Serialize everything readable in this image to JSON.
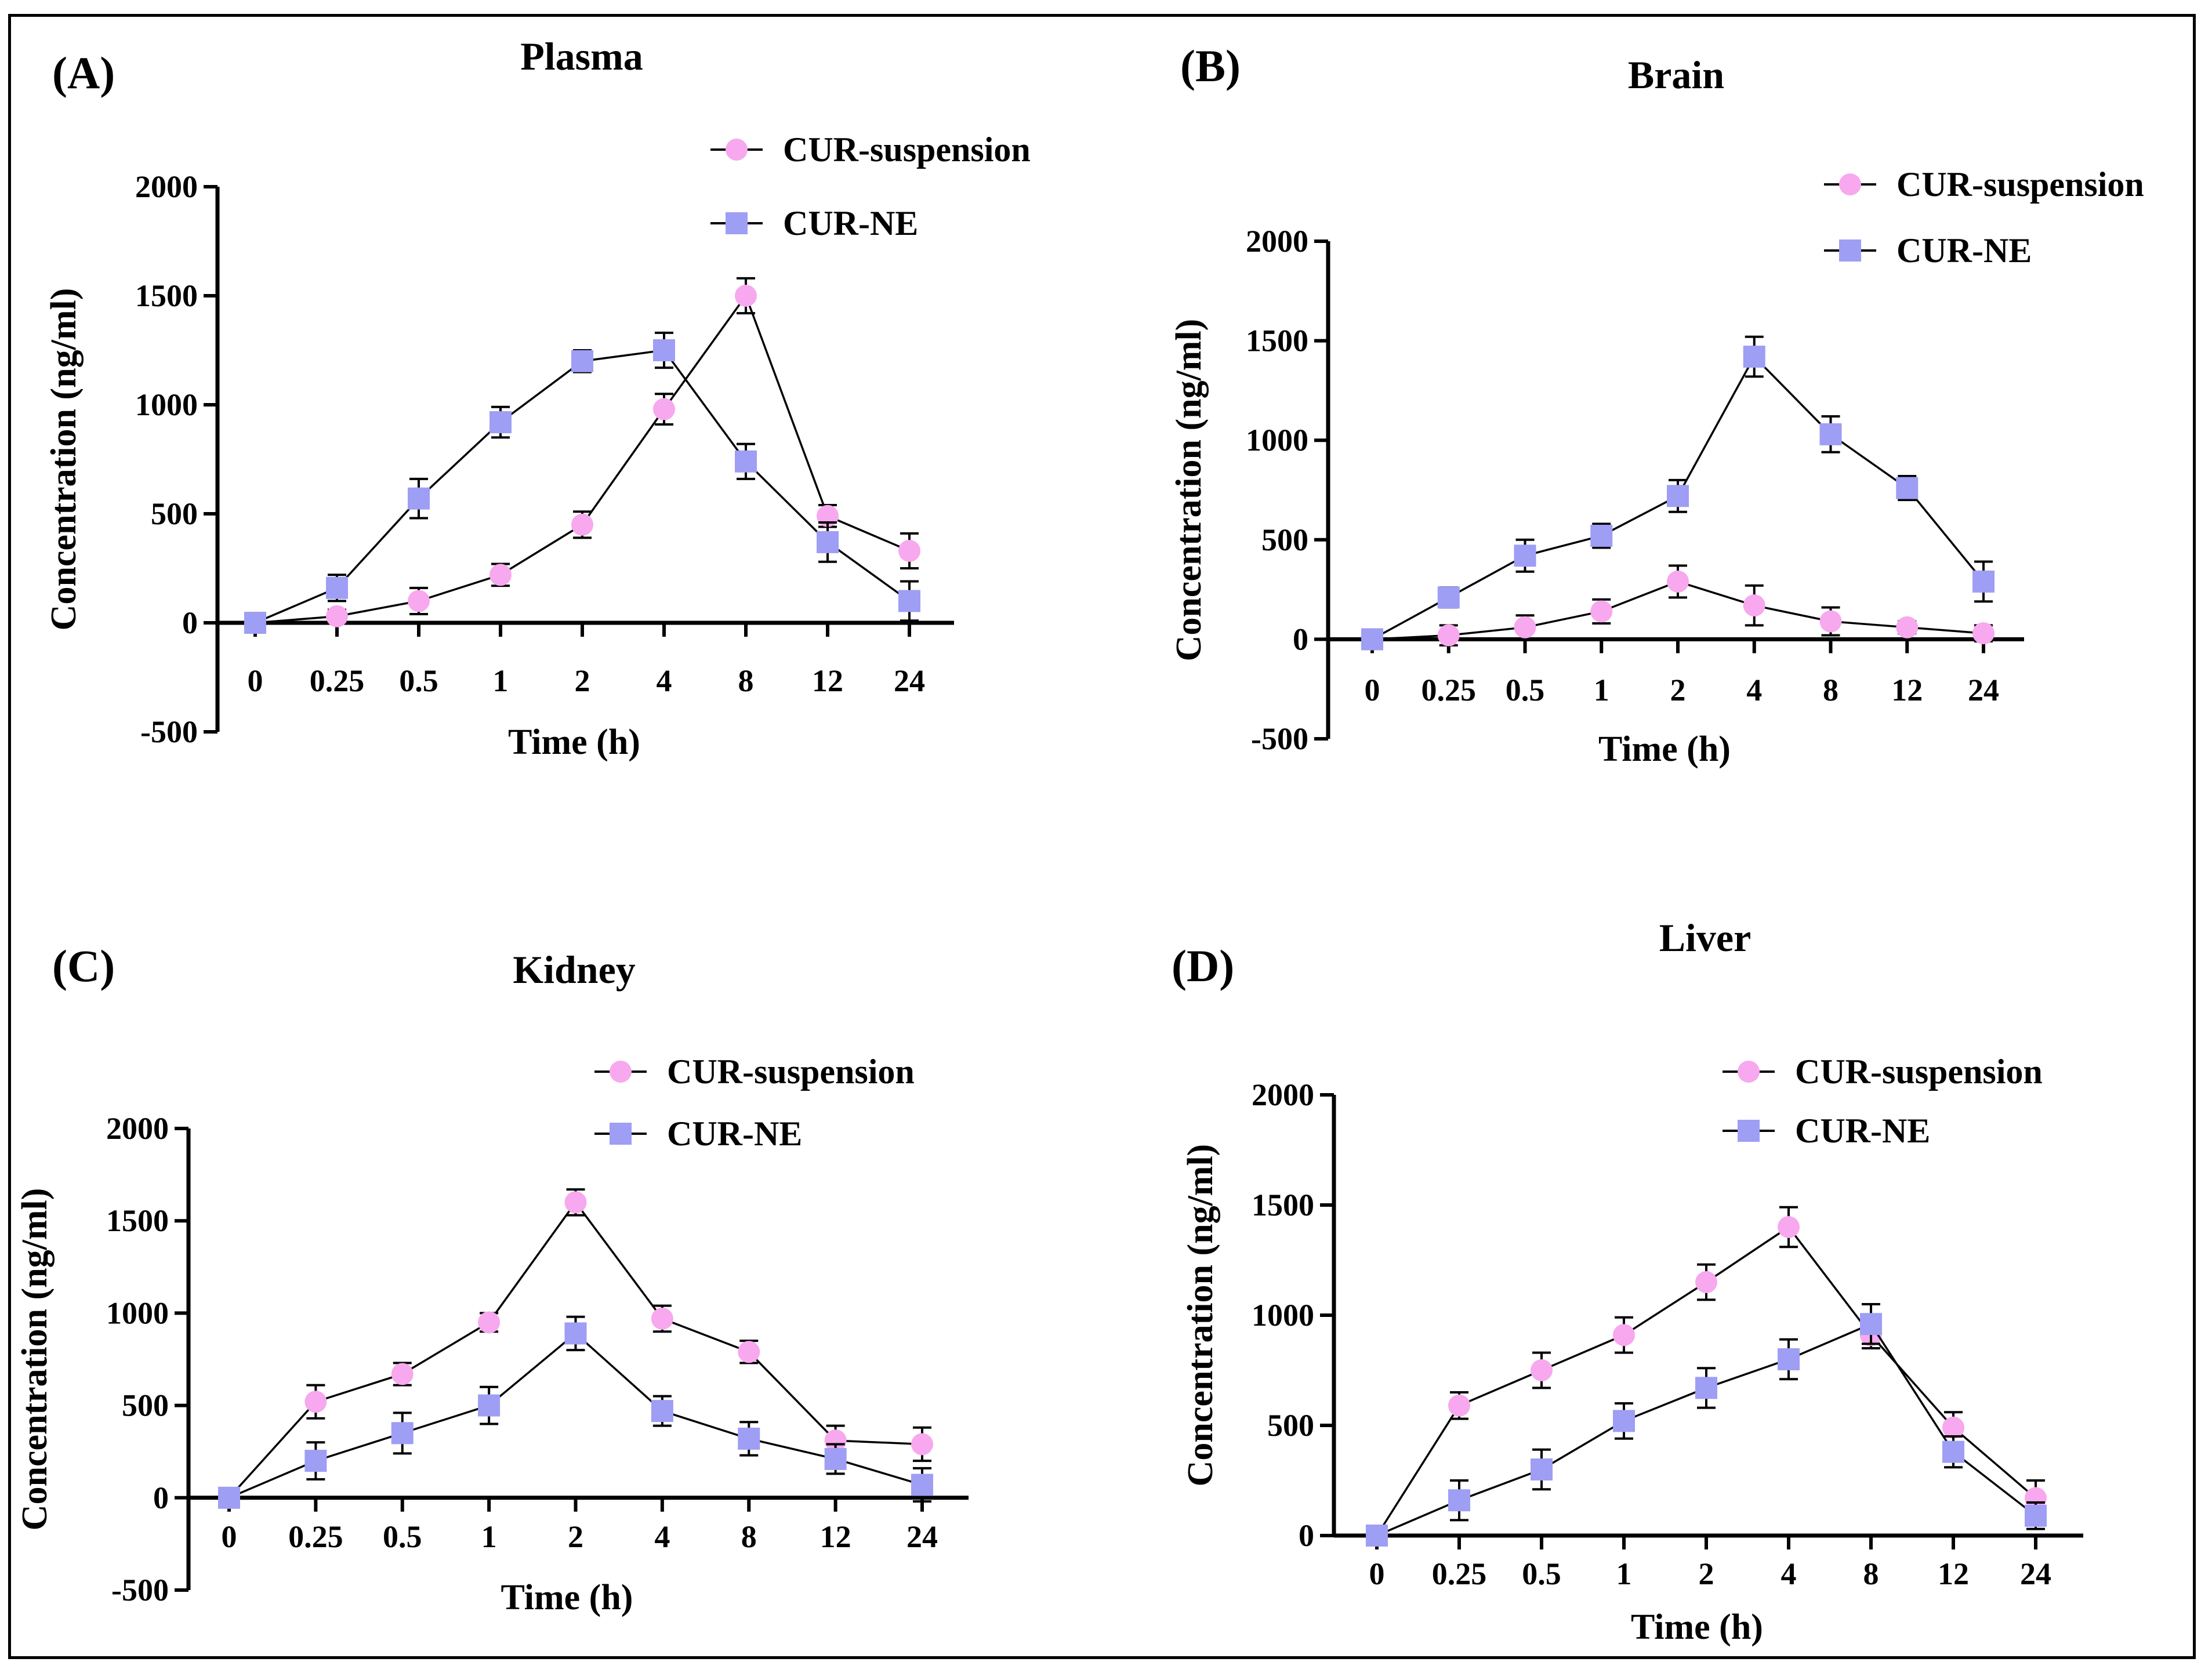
{
  "colors": {
    "suspension": "#f7a8ee",
    "ne": "#9e9ef5",
    "axis": "#000000"
  },
  "chart_data": [
    {
      "type": "line",
      "panel": "(A)",
      "title": "Plasma",
      "xlabel": "Time (h)",
      "ylabel": "Concentration (ng/ml)",
      "categories": [
        "0",
        "0.25",
        "0.5",
        "1",
        "2",
        "4",
        "8",
        "12",
        "24"
      ],
      "ylim": [
        -500,
        2000
      ],
      "yticks": [
        -500,
        0,
        500,
        1000,
        1500,
        2000
      ],
      "ytick_labels": [
        "-500",
        "0",
        "500",
        "1000",
        "1500",
        "2000"
      ],
      "legend": "top-right",
      "series": [
        {
          "name": "CUR-suspension",
          "marker": "circle",
          "values": [
            0,
            30,
            100,
            220,
            450,
            980,
            1500,
            490,
            330
          ],
          "errors": [
            30,
            30,
            60,
            50,
            60,
            70,
            80,
            50,
            80
          ]
        },
        {
          "name": "CUR-NE",
          "marker": "square",
          "values": [
            0,
            160,
            570,
            920,
            1200,
            1250,
            740,
            370,
            100
          ],
          "errors": [
            30,
            60,
            90,
            70,
            50,
            80,
            80,
            90,
            90
          ]
        }
      ]
    },
    {
      "type": "line",
      "panel": "(B)",
      "title": "Brain",
      "xlabel": "Time (h)",
      "ylabel": "Concentration (ng/ml)",
      "categories": [
        "0",
        "0.25",
        "0.5",
        "1",
        "2",
        "4",
        "8",
        "12",
        "24"
      ],
      "ylim": [
        -500,
        2000
      ],
      "yticks": [
        -500,
        0,
        500,
        1000,
        1500,
        2000
      ],
      "ytick_labels": [
        "-500",
        "0",
        "500",
        "1000",
        "1500",
        "2000"
      ],
      "legend": "top-right",
      "series": [
        {
          "name": "CUR-suspension",
          "marker": "circle",
          "values": [
            0,
            20,
            60,
            140,
            290,
            170,
            90,
            60,
            30
          ],
          "errors": [
            20,
            50,
            60,
            60,
            80,
            100,
            70,
            30,
            40
          ]
        },
        {
          "name": "CUR-NE",
          "marker": "square",
          "values": [
            0,
            210,
            420,
            520,
            720,
            1420,
            1030,
            760,
            290
          ],
          "errors": [
            20,
            50,
            80,
            60,
            80,
            100,
            90,
            60,
            100
          ]
        }
      ]
    },
    {
      "type": "line",
      "panel": "(C)",
      "title": "Kidney",
      "xlabel": "Time (h)",
      "ylabel": "Concentration (ng/ml)",
      "categories": [
        "0",
        "0.25",
        "0.5",
        "1",
        "2",
        "4",
        "8",
        "12",
        "24"
      ],
      "ylim": [
        -500,
        2000
      ],
      "yticks": [
        -500,
        0,
        500,
        1000,
        1500,
        2000
      ],
      "ytick_labels": [
        "-500",
        "0",
        "500",
        "1000",
        "1500",
        "2000"
      ],
      "legend": "top-right",
      "series": [
        {
          "name": "CUR-suspension",
          "marker": "circle",
          "values": [
            0,
            520,
            670,
            950,
            1600,
            970,
            790,
            310,
            290
          ],
          "errors": [
            20,
            90,
            60,
            50,
            70,
            70,
            60,
            80,
            90
          ]
        },
        {
          "name": "CUR-NE",
          "marker": "square",
          "values": [
            0,
            200,
            350,
            500,
            890,
            470,
            320,
            210,
            70
          ],
          "errors": [
            20,
            100,
            110,
            100,
            90,
            80,
            90,
            80,
            90
          ]
        }
      ]
    },
    {
      "type": "line",
      "panel": "(D)",
      "title": "Liver",
      "xlabel": "Time (h)",
      "ylabel": "Concentration (ng/ml)",
      "categories": [
        "0",
        "0.25",
        "0.5",
        "1",
        "2",
        "4",
        "8",
        "12",
        "24"
      ],
      "ylim": [
        0,
        2000
      ],
      "yticks": [
        0,
        500,
        1000,
        1500,
        2000
      ],
      "ytick_labels": [
        "0",
        "500",
        "1000",
        "1500",
        "2000"
      ],
      "legend": "top-right",
      "series": [
        {
          "name": "CUR-suspension",
          "marker": "circle",
          "values": [
            0,
            590,
            750,
            910,
            1150,
            1400,
            910,
            490,
            170
          ],
          "errors": [
            20,
            60,
            80,
            80,
            80,
            90,
            60,
            70,
            80
          ]
        },
        {
          "name": "CUR-NE",
          "marker": "square",
          "values": [
            0,
            160,
            300,
            520,
            670,
            800,
            960,
            380,
            90
          ],
          "errors": [
            20,
            90,
            90,
            80,
            90,
            90,
            90,
            70,
            60
          ]
        }
      ]
    }
  ]
}
